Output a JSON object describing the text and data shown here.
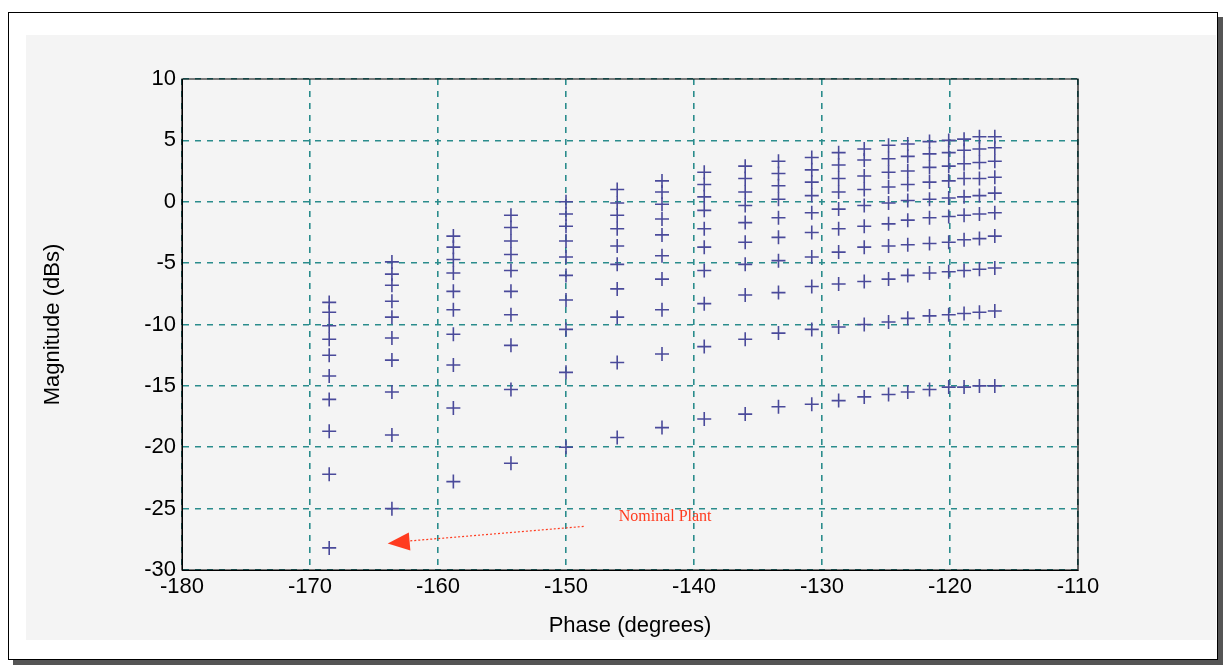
{
  "chart_data": {
    "type": "scatter",
    "xlabel": "Phase (degrees)",
    "ylabel": "Magnitude (dBs)",
    "x": [
      -168.5,
      -168.5,
      -168.5,
      -168.5,
      -168.5,
      -168.5,
      -168.5,
      -168.5,
      -168.5,
      -168.5,
      -163.6,
      -163.6,
      -163.6,
      -163.6,
      -163.6,
      -163.6,
      -163.6,
      -163.6,
      -163.6,
      -163.6,
      -158.8,
      -158.8,
      -158.8,
      -158.8,
      -158.8,
      -158.8,
      -158.8,
      -158.8,
      -158.8,
      -158.8,
      -154.3,
      -154.3,
      -154.3,
      -154.3,
      -154.3,
      -154.3,
      -154.3,
      -154.3,
      -154.3,
      -154.3,
      -150.0,
      -150.0,
      -150.0,
      -150.0,
      -150.0,
      -150.0,
      -150.0,
      -150.0,
      -150.0,
      -150.0,
      -146.0,
      -146.0,
      -146.0,
      -146.0,
      -146.0,
      -146.0,
      -146.0,
      -146.0,
      -146.0,
      -146.0,
      -142.5,
      -142.5,
      -142.5,
      -142.5,
      -142.5,
      -142.5,
      -142.5,
      -142.5,
      -142.5,
      -142.5,
      -139.2,
      -139.2,
      -139.2,
      -139.2,
      -139.2,
      -139.2,
      -139.2,
      -139.2,
      -139.2,
      -139.2,
      -136.0,
      -136.0,
      -136.0,
      -136.0,
      -136.0,
      -136.0,
      -136.0,
      -136.0,
      -136.0,
      -136.0,
      -133.4,
      -133.4,
      -133.4,
      -133.4,
      -133.4,
      -133.4,
      -133.4,
      -133.4,
      -133.4,
      -133.4,
      -130.8,
      -130.8,
      -130.8,
      -130.8,
      -130.8,
      -130.8,
      -130.8,
      -130.8,
      -130.8,
      -130.8,
      -128.7,
      -128.7,
      -128.7,
      -128.7,
      -128.7,
      -128.7,
      -128.7,
      -128.7,
      -128.7,
      -128.7,
      -126.7,
      -126.7,
      -126.7,
      -126.7,
      -126.7,
      -126.7,
      -126.7,
      -126.7,
      -126.7,
      -126.7,
      -124.8,
      -124.8,
      -124.8,
      -124.8,
      -124.8,
      -124.8,
      -124.8,
      -124.8,
      -124.8,
      -124.8,
      -123.3,
      -123.3,
      -123.3,
      -123.3,
      -123.3,
      -123.3,
      -123.3,
      -123.3,
      -123.3,
      -123.3,
      -121.6,
      -121.6,
      -121.6,
      -121.6,
      -121.6,
      -121.6,
      -121.6,
      -121.6,
      -121.6,
      -121.6,
      -120.1,
      -120.1,
      -120.1,
      -120.1,
      -120.1,
      -120.1,
      -120.1,
      -120.1,
      -120.1,
      -120.1,
      -118.9,
      -118.9,
      -118.9,
      -118.9,
      -118.9,
      -118.9,
      -118.9,
      -118.9,
      -118.9,
      -118.9,
      -117.7,
      -117.7,
      -117.7,
      -117.7,
      -117.7,
      -117.7,
      -117.7,
      -117.7,
      -117.7,
      -117.7,
      -116.5,
      -116.5,
      -116.5,
      -116.5,
      -116.5,
      -116.5,
      -116.5,
      -116.5,
      -116.5,
      -116.5
    ],
    "values": [
      -8.2,
      -9.0,
      -10.1,
      -11.2,
      -12.5,
      -14.2,
      -16.1,
      -18.7,
      -22.2,
      -28.2,
      -4.9,
      -5.9,
      -6.8,
      -8.1,
      -9.4,
      -11.1,
      -12.9,
      -15.5,
      -19.0,
      -25.0,
      -2.8,
      -3.7,
      -4.7,
      -5.8,
      -7.3,
      -8.8,
      -10.8,
      -13.3,
      -16.8,
      -22.8,
      -1.1,
      -2.1,
      -3.2,
      -4.3,
      -5.6,
      -7.3,
      -9.2,
      -11.7,
      -15.3,
      -21.3,
      0.0,
      -1.0,
      -2.0,
      -3.2,
      -4.5,
      -6.0,
      -8.0,
      -10.4,
      -13.9,
      -20.0,
      1.0,
      -0.1,
      -1.1,
      -2.2,
      -3.6,
      -5.1,
      -7.1,
      -9.4,
      -13.1,
      -19.2,
      1.7,
      0.8,
      -0.2,
      -1.4,
      -2.7,
      -4.4,
      -6.3,
      -8.8,
      -12.4,
      -18.4,
      2.4,
      1.4,
      0.4,
      -0.7,
      -2.2,
      -3.7,
      -5.6,
      -8.3,
      -11.8,
      -17.7,
      2.9,
      1.9,
      0.8,
      -0.3,
      -1.7,
      -3.3,
      -5.1,
      -7.6,
      -11.2,
      -17.3,
      3.3,
      2.3,
      1.3,
      0.2,
      -1.3,
      -2.9,
      -4.8,
      -7.4,
      -10.7,
      -16.7,
      3.6,
      2.6,
      1.6,
      0.5,
      -0.9,
      -2.5,
      -4.5,
      -6.9,
      -10.4,
      -16.5,
      4.0,
      3.0,
      1.9,
      0.8,
      -0.6,
      -2.2,
      -4.1,
      -6.7,
      -10.2,
      -16.2,
      4.3,
      3.4,
      2.1,
      1.0,
      -0.3,
      -2.0,
      -3.7,
      -6.5,
      -10.0,
      -15.9,
      4.6,
      3.5,
      2.4,
      1.2,
      -0.1,
      -1.8,
      -3.6,
      -6.3,
      -9.8,
      -15.7,
      4.7,
      3.7,
      2.5,
      1.4,
      0.1,
      -1.5,
      -3.5,
      -6.0,
      -9.5,
      -15.5,
      4.9,
      3.9,
      2.8,
      1.6,
      0.2,
      -1.3,
      -3.4,
      -5.8,
      -9.3,
      -15.3,
      5.0,
      4.0,
      2.9,
      1.7,
      0.3,
      -1.2,
      -3.3,
      -5.7,
      -9.2,
      -15.1,
      5.1,
      4.2,
      3.1,
      1.9,
      0.4,
      -1.1,
      -3.1,
      -5.6,
      -9.1,
      -15.1,
      5.3,
      4.3,
      3.2,
      1.9,
      0.5,
      -1.0,
      -3.0,
      -5.5,
      -9.0,
      -15.0,
      5.3,
      4.4,
      3.3,
      2.0,
      0.7,
      -0.9,
      -2.8,
      -5.4,
      -8.9,
      -15.0
    ],
    "color": "#4a4a9a",
    "marker": "cross",
    "xlim": [
      -180,
      -110
    ],
    "xticks": [
      -180,
      -170,
      -160,
      -150,
      -140,
      -130,
      -120,
      -110
    ],
    "ylim": [
      -30,
      10
    ],
    "yticks": [
      -30,
      -25,
      -20,
      -15,
      -10,
      -5,
      0,
      5,
      10
    ],
    "grid": true,
    "legend": false,
    "annotations": [
      "Nominal Plant"
    ]
  }
}
